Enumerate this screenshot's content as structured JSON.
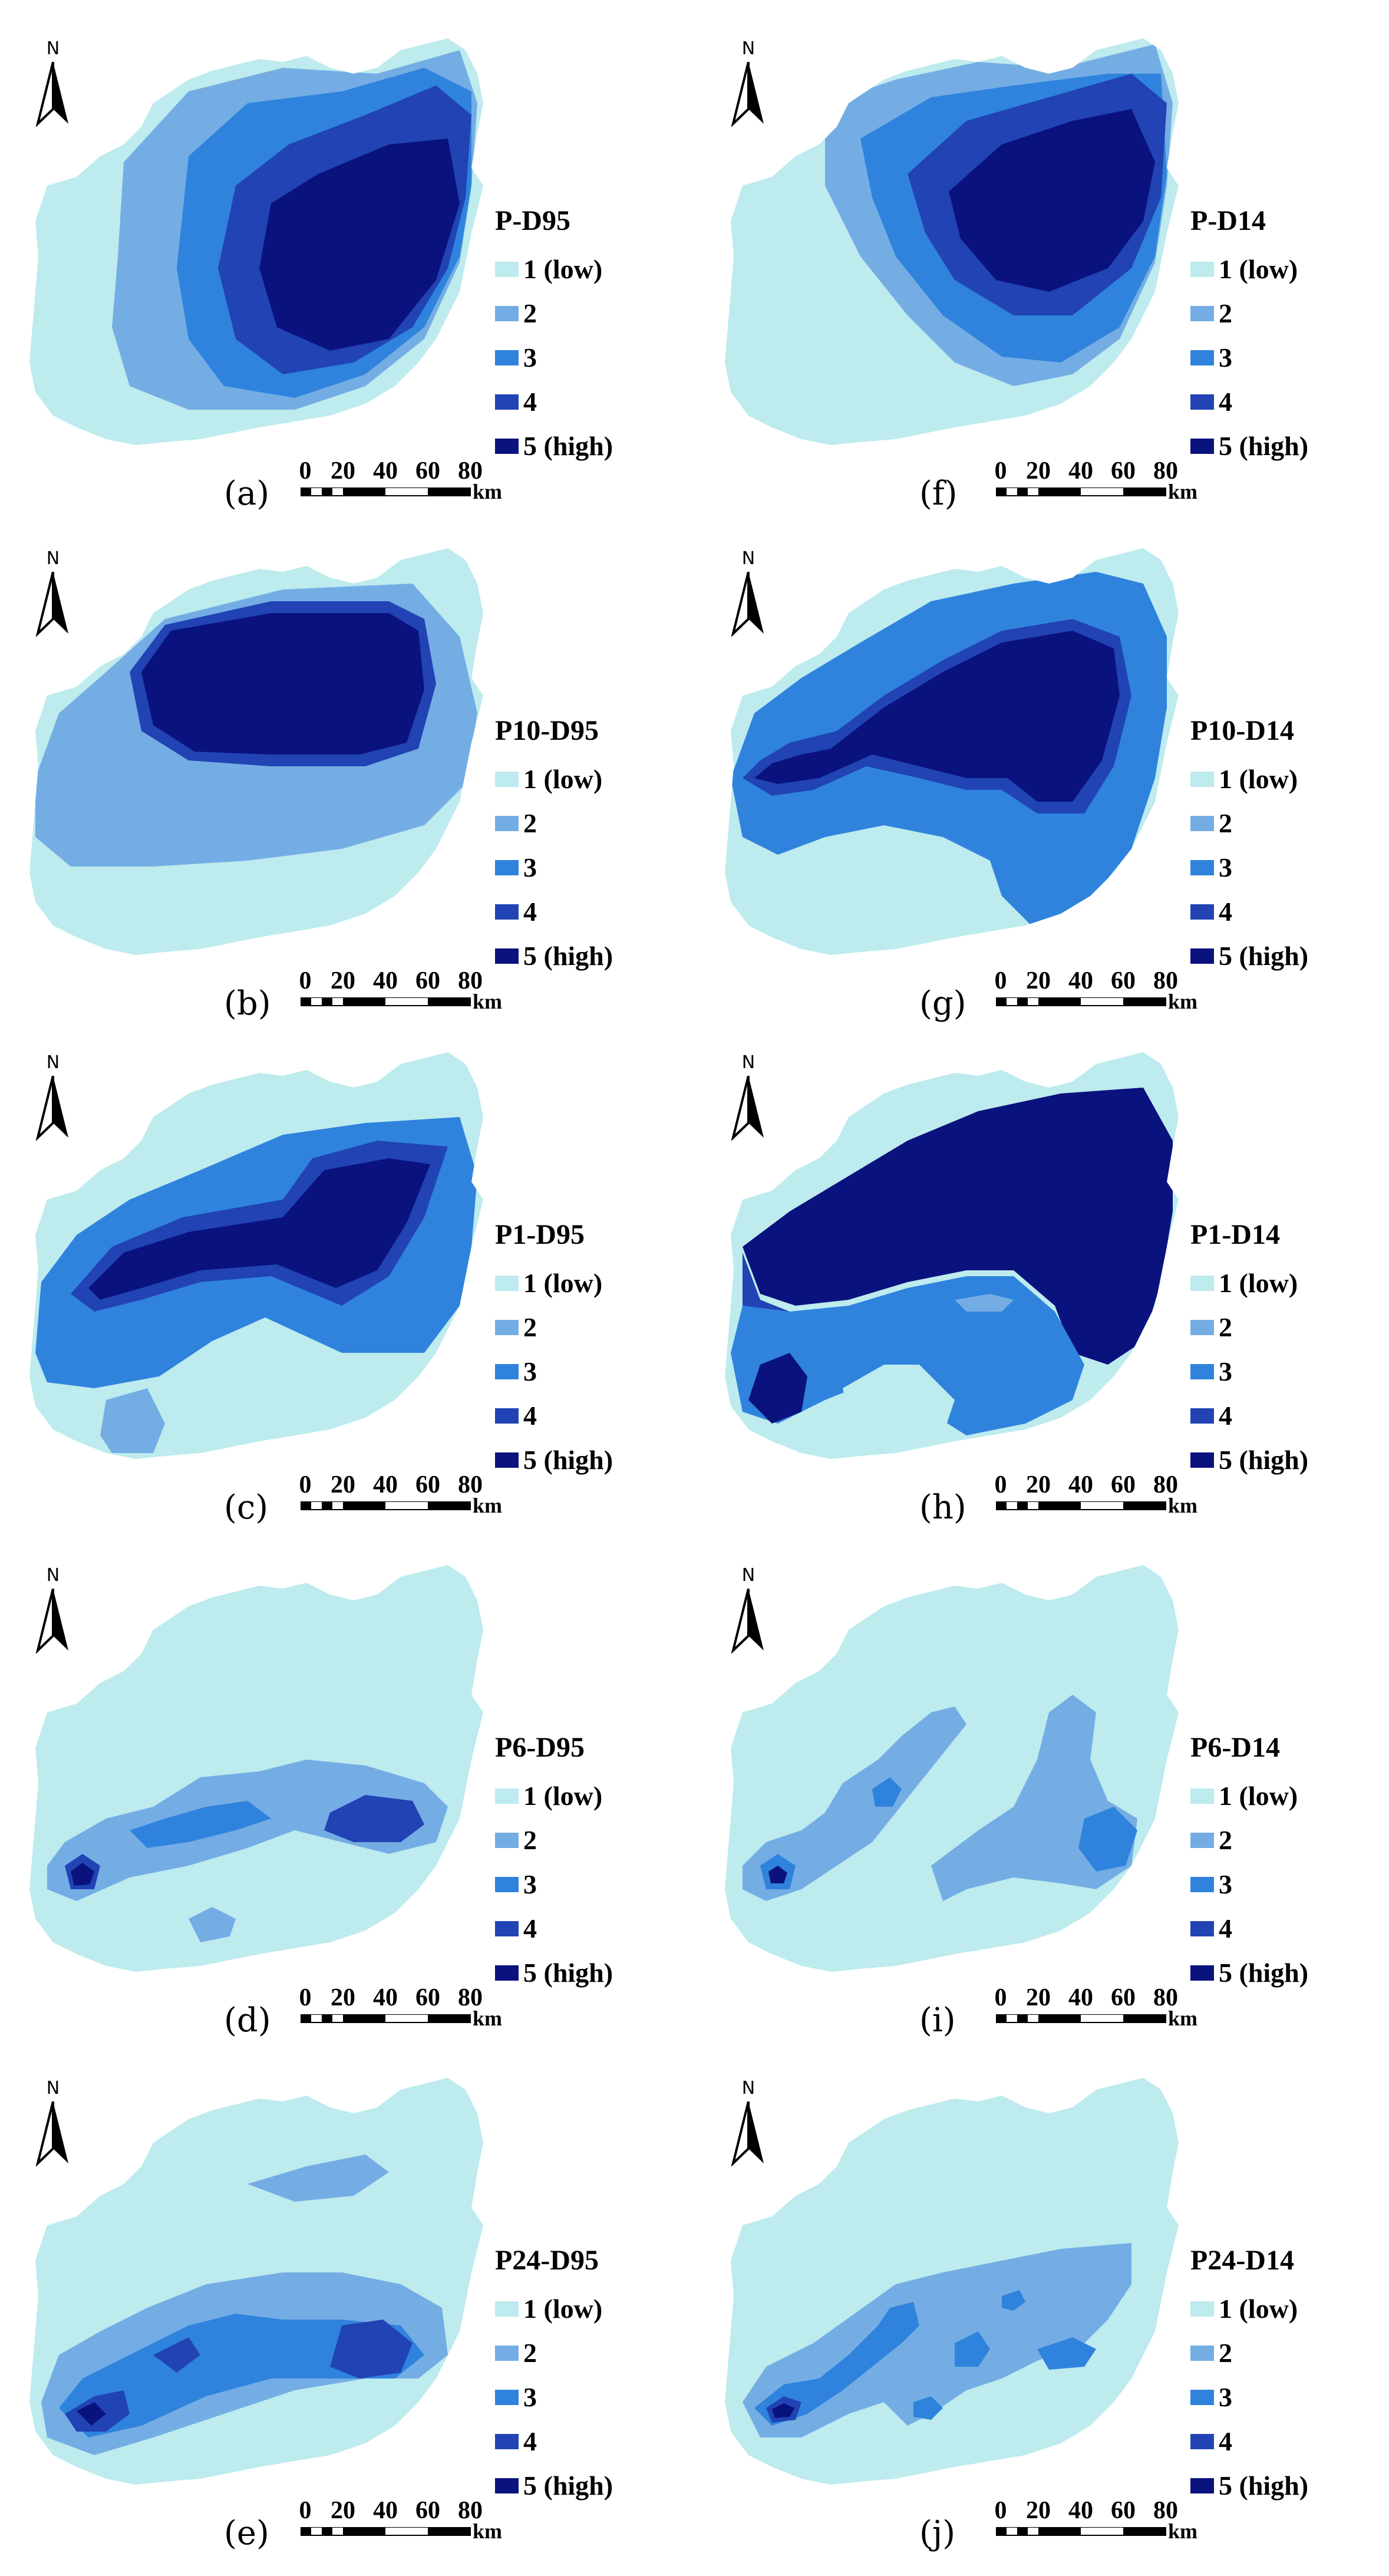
{
  "north_label": "N",
  "palette": {
    "1": "#bdebee",
    "2": "#74ade4",
    "3": "#2f83dd",
    "4": "#2143b4",
    "5": "#0a127e"
  },
  "legend_items": [
    {
      "level": 1,
      "label": "1 (low)"
    },
    {
      "level": 2,
      "label": "2"
    },
    {
      "level": 3,
      "label": "3"
    },
    {
      "level": 4,
      "label": "4"
    },
    {
      "level": 5,
      "label": "5 (high)"
    }
  ],
  "scale": {
    "ticks": [
      "0",
      "20",
      "40",
      "60",
      "80"
    ],
    "unit": "km"
  },
  "panels": [
    {
      "label": "(a)",
      "title": "P-D95",
      "pattern": "a"
    },
    {
      "label": "(b)",
      "title": "P10-D95",
      "pattern": "b"
    },
    {
      "label": "(c)",
      "title": "P1-D95",
      "pattern": "c"
    },
    {
      "label": "(d)",
      "title": "P6-D95",
      "pattern": "d"
    },
    {
      "label": "(e)",
      "title": "P24-D95",
      "pattern": "e"
    },
    {
      "label": "(f)",
      "title": "P-D14",
      "pattern": "f"
    },
    {
      "label": "(g)",
      "title": "P10-D14",
      "pattern": "g"
    },
    {
      "label": "(h)",
      "title": "P1-D14",
      "pattern": "h"
    },
    {
      "label": "(i)",
      "title": "P6-D14",
      "pattern": "i"
    },
    {
      "label": "(j)",
      "title": "P24-D14",
      "pattern": "j"
    }
  ]
}
